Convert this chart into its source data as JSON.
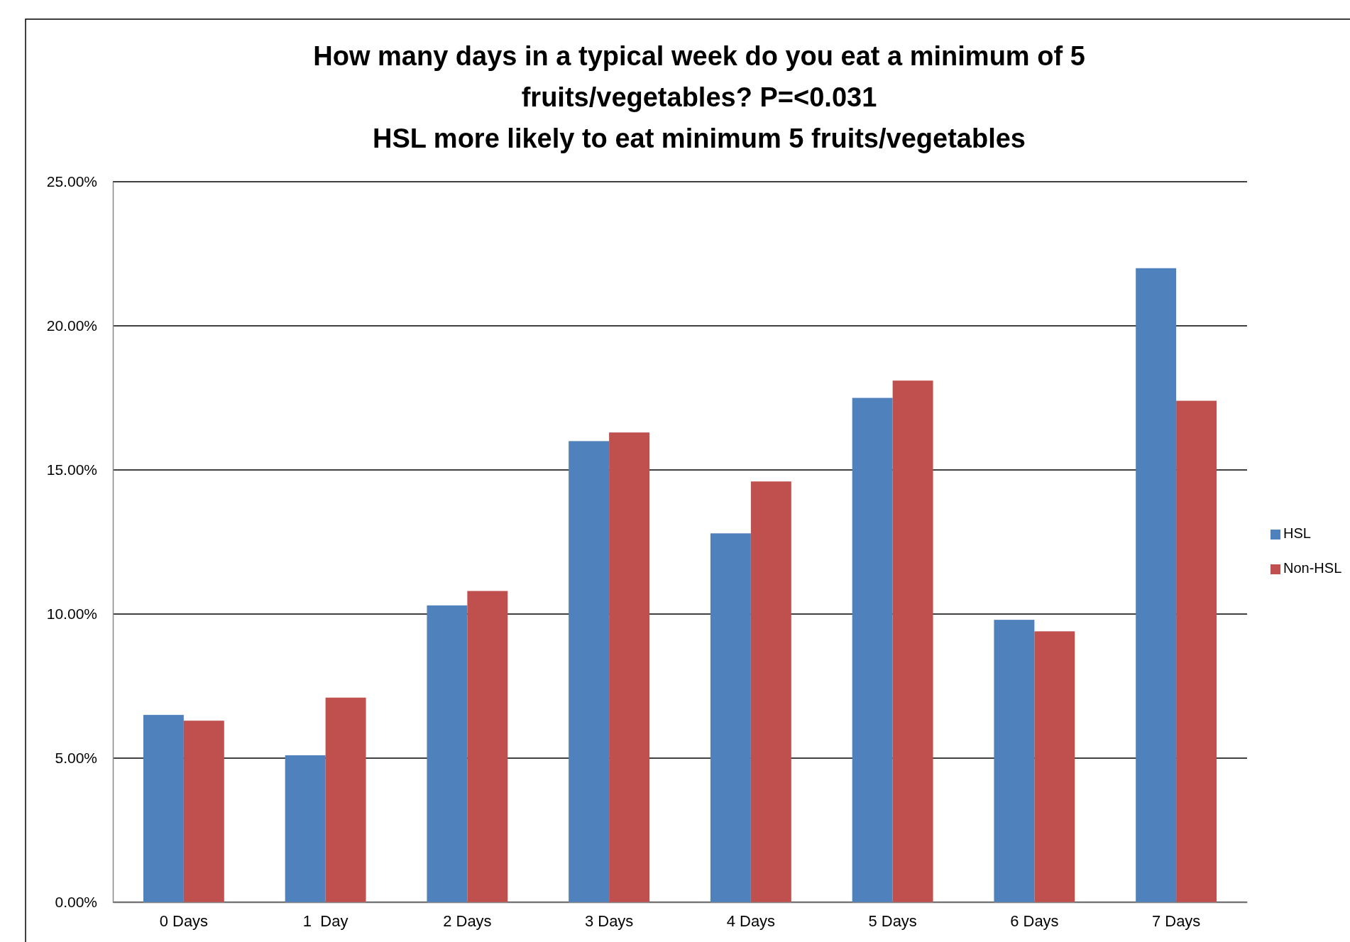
{
  "chart_data": {
    "type": "bar",
    "title": "How many days in a typical week do you eat a minimum of 5 fruits/vegetables? P=<0.031\nHSL more likely to eat minimum 5 fruits/vegetables",
    "categories": [
      "0 Days",
      "1  Day",
      "2 Days",
      "3 Days",
      "4 Days",
      "5 Days",
      "6 Days",
      "7 Days"
    ],
    "series": [
      {
        "name": "HSL",
        "color": "#4f81bd",
        "values": [
          6.5,
          5.1,
          10.3,
          16.0,
          12.8,
          17.5,
          9.8,
          22.0
        ]
      },
      {
        "name": "Non-HSL",
        "color": "#c0504d",
        "values": [
          6.3,
          7.1,
          10.8,
          16.3,
          14.6,
          18.1,
          9.4,
          17.4
        ]
      }
    ],
    "ylim": [
      0,
      25
    ],
    "yticks": [
      {
        "value": 0,
        "label": "0.00%"
      },
      {
        "value": 5,
        "label": "5.00%"
      },
      {
        "value": 10,
        "label": "10.00%"
      },
      {
        "value": 15,
        "label": "15.00%"
      },
      {
        "value": 20,
        "label": "20.00%"
      },
      {
        "value": 25,
        "label": "25.00%"
      }
    ],
    "grid": "y",
    "legend": "right"
  }
}
